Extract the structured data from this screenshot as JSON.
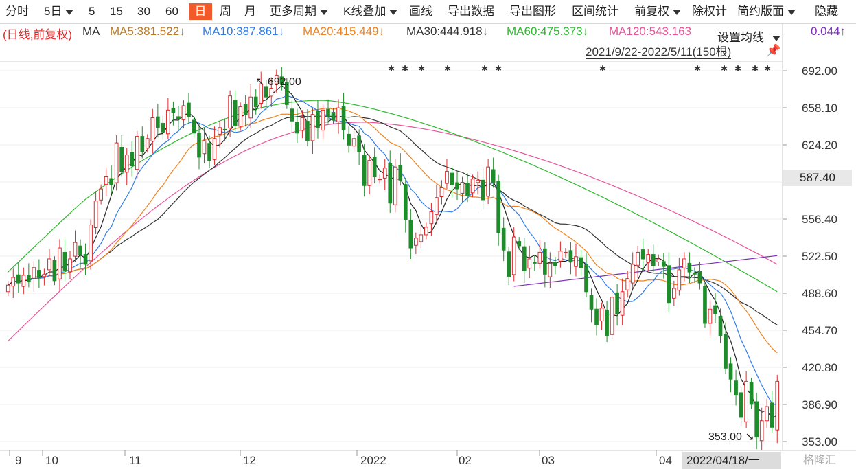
{
  "toolbar": {
    "items": [
      "分时",
      "5日",
      "5",
      "15",
      "30",
      "60",
      "日",
      "周",
      "月",
      "更多周期",
      "K线叠加",
      "画线",
      "导出数据",
      "导出图形",
      "区间统计",
      "前复权",
      "除权计",
      "简约版面",
      "隐藏"
    ],
    "active": "日"
  },
  "ma_legend": {
    "prefix": "(日线,前复权)",
    "ma": "MA",
    "ma5": "MA5:381.522↓",
    "ma10": "MA10:387.861↓",
    "ma20": "MA20:415.449↓",
    "ma30": "MA30:444.918↓",
    "ma60": "MA60:475.373↓",
    "ma120": "MA120:543.163",
    "tail": "0.044↑",
    "settings": "设置均线"
  },
  "range_label": "2021/9/22-2022/5/11(150根)",
  "pin_icon": "pin-icon",
  "cursor_price": "587.40",
  "date_box": "2022/04/18/一",
  "watermark": "格隆汇",
  "colors": {
    "up": "#e0282a",
    "down": "#1e8c2a",
    "ma5": "#222222",
    "ma10": "#2f7be8",
    "ma20": "#f0821e",
    "ma30": "#333333",
    "ma60": "#2fb82f",
    "ma120": "#e8529a",
    "overlay": "#7a2fb8"
  },
  "chart_data": {
    "type": "candlestick",
    "ylim": [
      353.0,
      692.0
    ],
    "yticks": [
      "692.00",
      "658.10",
      "624.20",
      "587.40",
      "556.40",
      "522.50",
      "488.60",
      "454.70",
      "420.80",
      "386.90",
      "353.00"
    ],
    "xticks": [
      "9",
      "10",
      "11",
      "12",
      "2022",
      "02",
      "03",
      "04"
    ],
    "annotations": {
      "high": "692.00",
      "low": "353.00"
    },
    "closes": [
      496,
      503,
      498,
      505,
      499,
      512,
      503,
      506,
      520,
      500,
      530,
      509,
      520,
      535,
      524,
      515,
      551,
      573,
      584,
      595,
      588,
      626,
      600,
      615,
      605,
      632,
      618,
      630,
      649,
      640,
      636,
      656,
      654,
      648,
      660,
      650,
      635,
      613,
      628,
      610,
      630,
      640,
      638,
      669,
      642,
      659,
      652,
      668,
      659,
      680,
      668,
      676,
      688,
      680,
      661,
      646,
      635,
      649,
      628,
      652,
      640,
      656,
      650,
      647,
      658,
      638,
      624,
      630,
      618,
      587,
      610,
      595,
      593,
      603,
      571,
      604,
      592,
      556,
      530,
      539,
      542,
      549,
      563,
      576,
      585,
      600,
      588,
      584,
      590,
      578,
      593,
      592,
      574,
      604,
      590,
      544,
      528,
      504,
      540,
      532,
      509,
      520,
      516,
      526,
      506,
      516,
      514,
      527,
      526,
      517,
      522,
      512,
      490,
      474,
      460,
      475,
      450,
      485,
      470,
      490,
      502,
      515,
      526,
      520,
      524,
      514,
      520,
      513,
      480,
      493,
      510,
      520,
      508,
      506,
      498,
      461,
      474,
      470,
      450,
      420,
      410,
      396,
      375,
      408,
      387,
      357,
      372,
      385,
      366,
      408
    ]
  }
}
